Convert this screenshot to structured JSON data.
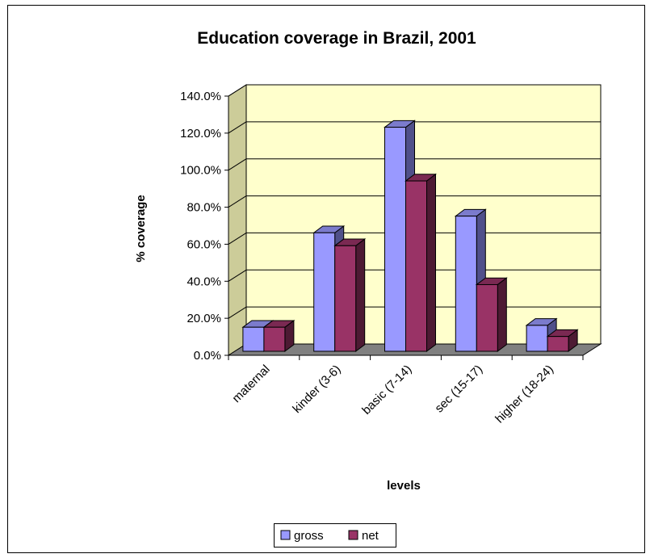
{
  "chart_data": {
    "type": "bar",
    "title": "Education coverage in Brazil, 2001",
    "xlabel": "levels",
    "ylabel": "% coverage",
    "categories": [
      "maternal",
      "kinder (3-6)",
      "basic (7-14)",
      "sec (15-17)",
      "higher (18-24)"
    ],
    "series": [
      {
        "name": "gross",
        "values": [
          13.0,
          64.0,
          121.0,
          73.0,
          14.0
        ]
      },
      {
        "name": "net",
        "values": [
          13.0,
          57.0,
          92.0,
          36.0,
          8.0
        ]
      }
    ],
    "ylim": [
      0,
      140
    ],
    "yticks": [
      "0.0%",
      "20.0%",
      "40.0%",
      "60.0%",
      "80.0%",
      "100.0%",
      "120.0%",
      "140.0%"
    ],
    "grid": true,
    "legend": "bottom",
    "colors": {
      "gross": "#9999ff",
      "gross_top": "#7b7bcc",
      "gross_side": "#50508a",
      "net": "#993366",
      "net_top": "#7a2952",
      "net_side": "#4d1a33",
      "plot_back": "#ffffcc",
      "plot_wall": "#cccc99",
      "plot_floor": "#808080"
    }
  }
}
